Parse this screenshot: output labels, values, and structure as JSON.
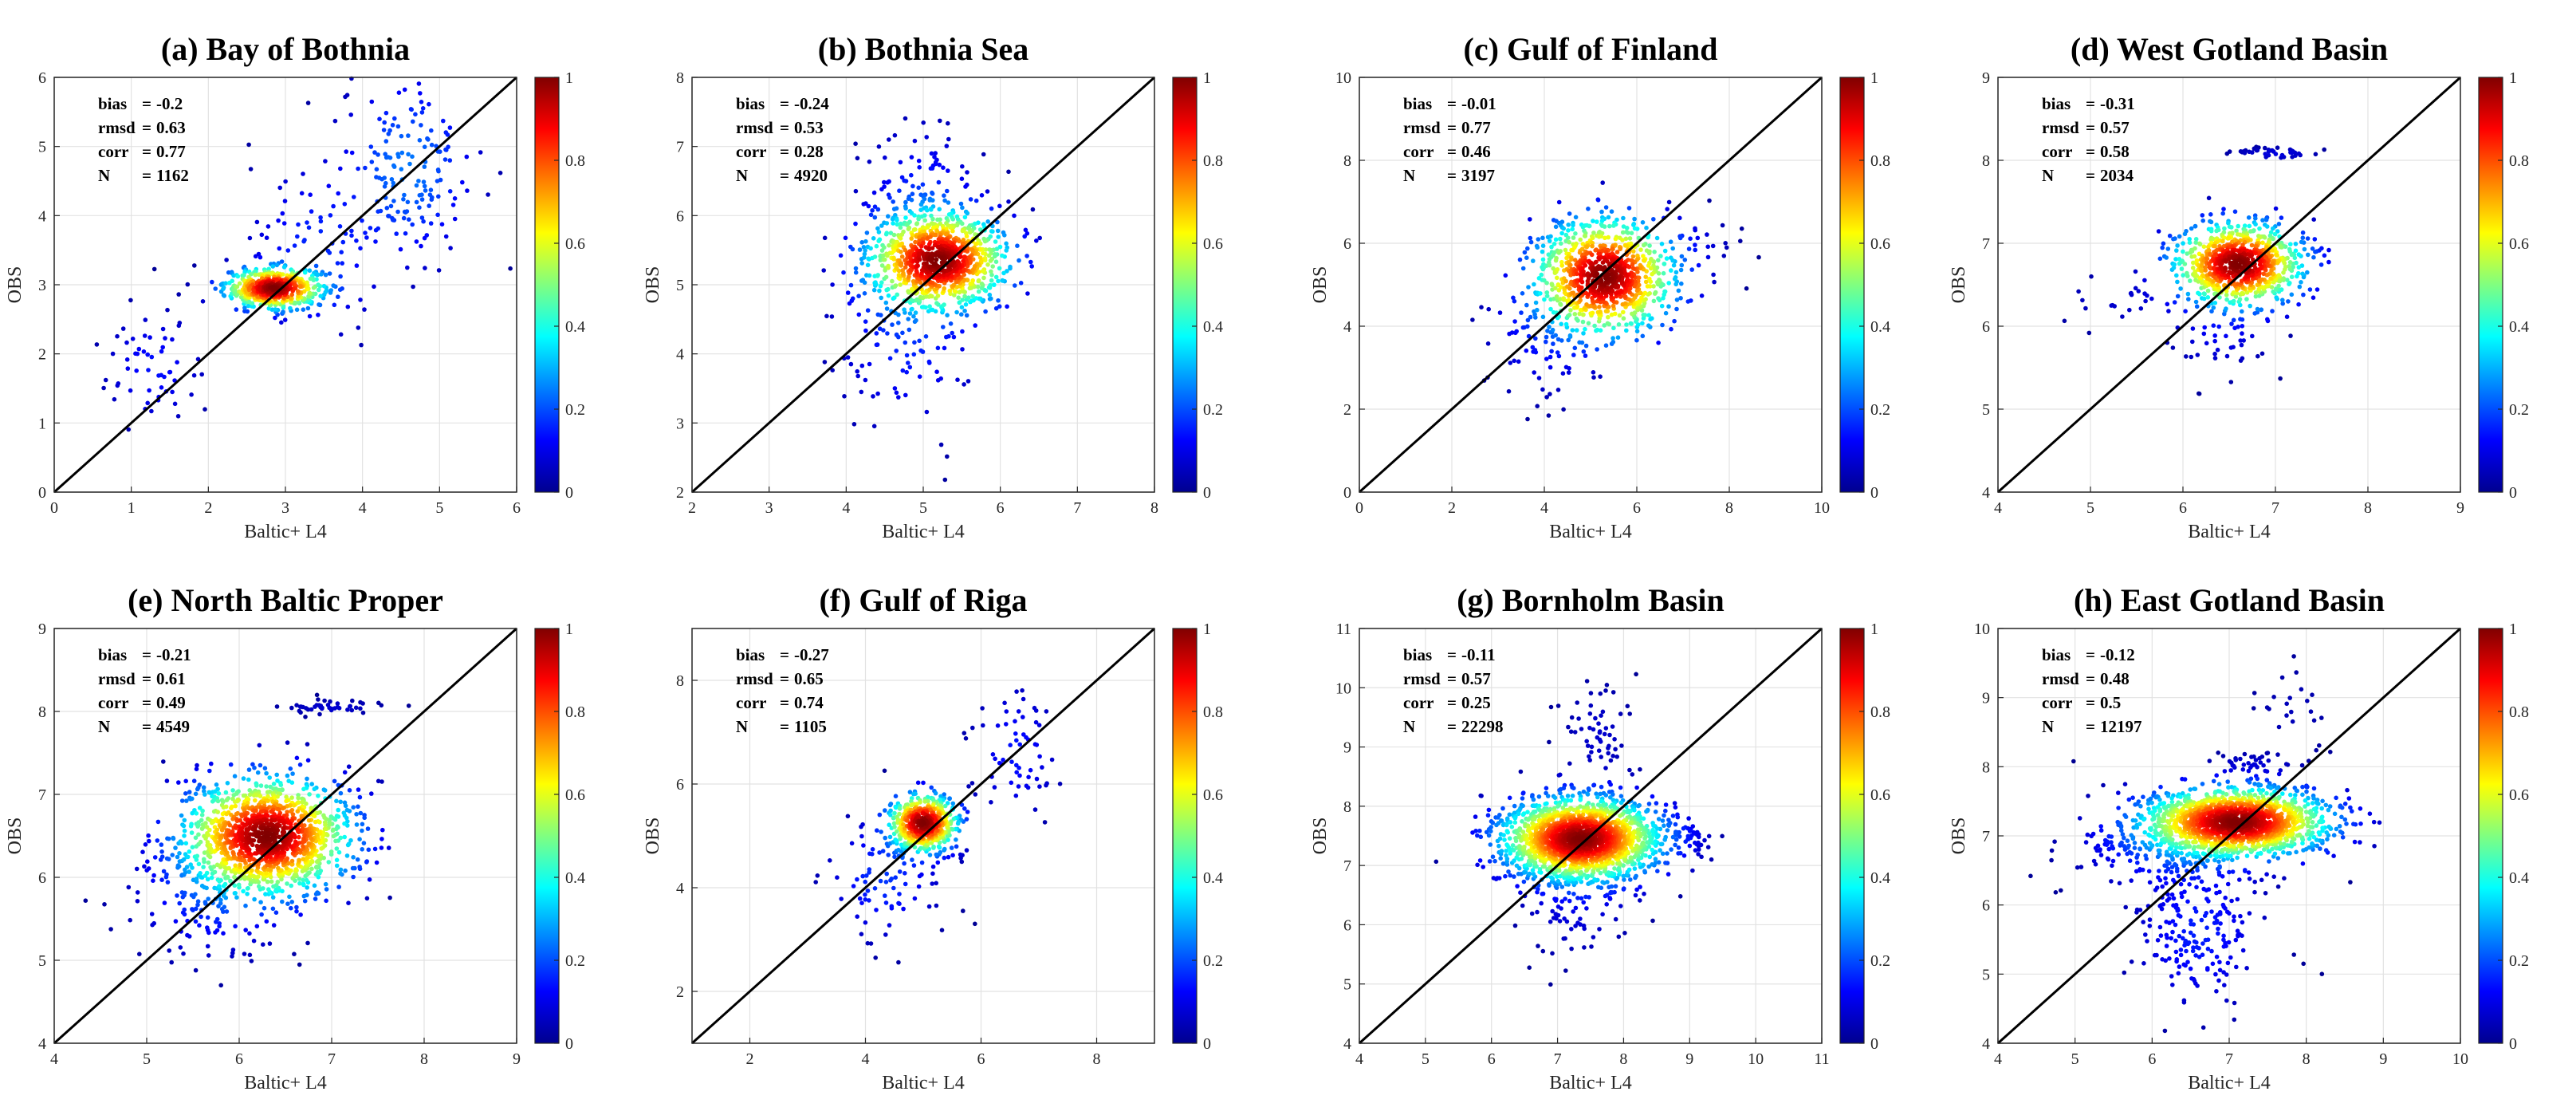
{
  "figure": {
    "colorbar_ticks": [
      "0",
      "0.2",
      "0.4",
      "0.6",
      "0.8",
      "1"
    ],
    "colormap": [
      "#00008f",
      "#0000ff",
      "#0080ff",
      "#00ffff",
      "#80ff80",
      "#ffff00",
      "#ff8000",
      "#ff0000",
      "#800000"
    ],
    "diagonal_color": "#000000"
  },
  "chart_data": [
    {
      "type": "scatter",
      "title": "(a) Bay of Bothnia",
      "xlabel": "Baltic+ L4",
      "ylabel": "OBS",
      "xlim": [
        0,
        6
      ],
      "ylim": [
        0,
        6
      ],
      "xticks": [
        0,
        1,
        2,
        3,
        4,
        5,
        6
      ],
      "yticks": [
        0,
        1,
        2,
        3,
        4,
        5,
        6
      ],
      "stats": [
        {
          "label": "bias",
          "value": "-0.2"
        },
        {
          "label": "rmsd",
          "value": "0.63"
        },
        {
          "label": "corr",
          "value": "0.77"
        },
        {
          "label": "N",
          "value": "1162"
        }
      ],
      "colorbar": {
        "range": [
          0,
          1
        ]
      },
      "grid": true,
      "clusters": [
        {
          "cx": 2.85,
          "cy": 2.95,
          "sx": 0.32,
          "sy": 0.15,
          "n": 520
        },
        {
          "cx": 4.6,
          "cy": 4.7,
          "sx": 0.45,
          "sy": 0.7,
          "n": 160
        },
        {
          "cx": 1.3,
          "cy": 1.8,
          "sx": 0.35,
          "sy": 0.45,
          "n": 60
        },
        {
          "cx": 3.4,
          "cy": 3.5,
          "sx": 0.5,
          "sy": 0.7,
          "n": 80
        }
      ]
    },
    {
      "type": "scatter",
      "title": "(b) Bothnia Sea",
      "xlabel": "Baltic+ L4",
      "ylabel": "OBS",
      "xlim": [
        2,
        8
      ],
      "ylim": [
        2,
        8
      ],
      "xticks": [
        2,
        3,
        4,
        5,
        6,
        7,
        8
      ],
      "yticks": [
        2,
        3,
        4,
        5,
        6,
        7,
        8
      ],
      "stats": [
        {
          "label": "bias",
          "value": "-0.24"
        },
        {
          "label": "rmsd",
          "value": "0.53"
        },
        {
          "label": "corr",
          "value": "0.28"
        },
        {
          "label": "N",
          "value": "4920"
        }
      ],
      "colorbar": {
        "range": [
          0,
          1
        ]
      },
      "grid": true,
      "clusters": [
        {
          "cx": 5.2,
          "cy": 5.35,
          "sx": 0.45,
          "sy": 0.35,
          "n": 900
        },
        {
          "cx": 4.8,
          "cy": 4.6,
          "sx": 0.5,
          "sy": 0.9,
          "n": 160
        },
        {
          "cx": 5.0,
          "cy": 6.2,
          "sx": 0.4,
          "sy": 0.6,
          "n": 120
        }
      ]
    },
    {
      "type": "scatter",
      "title": "(c) Gulf of Finland",
      "xlabel": "Baltic+ L4",
      "ylabel": "OBS",
      "xlim": [
        0,
        10
      ],
      "ylim": [
        0,
        10
      ],
      "xticks": [
        0,
        2,
        4,
        6,
        8,
        10
      ],
      "yticks": [
        0,
        2,
        4,
        6,
        8,
        10
      ],
      "stats": [
        {
          "label": "bias",
          "value": "-0.01"
        },
        {
          "label": "rmsd",
          "value": "0.77"
        },
        {
          "label": "corr",
          "value": "0.46"
        },
        {
          "label": "N",
          "value": "3197"
        }
      ],
      "colorbar": {
        "range": [
          0,
          1
        ]
      },
      "grid": true,
      "clusters": [
        {
          "cx": 5.3,
          "cy": 5.2,
          "sx": 0.75,
          "sy": 0.7,
          "n": 900
        },
        {
          "cx": 4.0,
          "cy": 3.8,
          "sx": 0.7,
          "sy": 0.8,
          "n": 90
        },
        {
          "cx": 7.2,
          "cy": 6.0,
          "sx": 0.5,
          "sy": 0.4,
          "n": 30
        }
      ]
    },
    {
      "type": "scatter",
      "title": "(d) West Gotland Basin",
      "xlabel": "Baltic+ L4",
      "ylabel": "OBS",
      "xlim": [
        4,
        9
      ],
      "ylim": [
        4,
        9
      ],
      "xticks": [
        4,
        5,
        6,
        7,
        8,
        9
      ],
      "yticks": [
        4,
        5,
        6,
        7,
        8,
        9
      ],
      "stats": [
        {
          "label": "bias",
          "value": "-0.31"
        },
        {
          "label": "rmsd",
          "value": "0.57"
        },
        {
          "label": "corr",
          "value": "0.58"
        },
        {
          "label": "N",
          "value": "2034"
        }
      ],
      "colorbar": {
        "range": [
          0,
          1
        ]
      },
      "grid": true,
      "clusters": [
        {
          "cx": 6.6,
          "cy": 6.75,
          "sx": 0.35,
          "sy": 0.25,
          "n": 800
        },
        {
          "cx": 7.0,
          "cy": 8.08,
          "sx": 0.25,
          "sy": 0.04,
          "n": 40
        },
        {
          "cx": 5.3,
          "cy": 6.3,
          "sx": 0.4,
          "sy": 0.2,
          "n": 25
        },
        {
          "cx": 6.4,
          "cy": 6.0,
          "sx": 0.3,
          "sy": 0.3,
          "n": 60
        }
      ]
    },
    {
      "type": "scatter",
      "title": "(e) North Baltic Proper",
      "xlabel": "Baltic+ L4",
      "ylabel": "OBS",
      "xlim": [
        4,
        9
      ],
      "ylim": [
        4,
        9
      ],
      "xticks": [
        4,
        5,
        6,
        7,
        8,
        9
      ],
      "yticks": [
        4,
        5,
        6,
        7,
        8,
        9
      ],
      "stats": [
        {
          "label": "bias",
          "value": "-0.21"
        },
        {
          "label": "rmsd",
          "value": "0.61"
        },
        {
          "label": "corr",
          "value": "0.49"
        },
        {
          "label": "N",
          "value": "4549"
        }
      ],
      "colorbar": {
        "range": [
          0,
          1
        ]
      },
      "grid": true,
      "clusters": [
        {
          "cx": 6.3,
          "cy": 6.5,
          "sx": 0.45,
          "sy": 0.35,
          "n": 1300
        },
        {
          "cx": 5.7,
          "cy": 5.8,
          "sx": 0.45,
          "sy": 0.4,
          "n": 200
        },
        {
          "cx": 7.0,
          "cy": 8.05,
          "sx": 0.3,
          "sy": 0.05,
          "n": 45
        }
      ]
    },
    {
      "type": "scatter",
      "title": "(f) Gulf of Riga",
      "xlabel": "Baltic+ L4",
      "ylabel": "OBS",
      "xlim": [
        1,
        9
      ],
      "ylim": [
        1,
        9
      ],
      "xticks": [
        2,
        4,
        6,
        8
      ],
      "yticks": [
        2,
        4,
        6,
        8
      ],
      "stats": [
        {
          "label": "bias",
          "value": "-0.27"
        },
        {
          "label": "rmsd",
          "value": "0.65"
        },
        {
          "label": "corr",
          "value": "0.74"
        },
        {
          "label": "N",
          "value": "1105"
        }
      ],
      "colorbar": {
        "range": [
          0,
          1
        ]
      },
      "grid": true,
      "clusters": [
        {
          "cx": 5.0,
          "cy": 5.25,
          "sx": 0.3,
          "sy": 0.28,
          "n": 520
        },
        {
          "cx": 6.6,
          "cy": 6.6,
          "sx": 0.4,
          "sy": 0.7,
          "n": 60
        },
        {
          "cx": 4.3,
          "cy": 4.2,
          "sx": 0.5,
          "sy": 0.6,
          "n": 90
        }
      ]
    },
    {
      "type": "scatter",
      "title": "(g) Bornholm Basin",
      "xlabel": "Baltic+ L4",
      "ylabel": "OBS",
      "xlim": [
        4,
        11
      ],
      "ylim": [
        4,
        11
      ],
      "xticks": [
        4,
        5,
        6,
        7,
        8,
        9,
        10,
        11
      ],
      "yticks": [
        4,
        5,
        6,
        7,
        8,
        9,
        10,
        11
      ],
      "stats": [
        {
          "label": "bias",
          "value": "-0.11"
        },
        {
          "label": "rmsd",
          "value": "0.57"
        },
        {
          "label": "corr",
          "value": "0.25"
        },
        {
          "label": "N",
          "value": "22298"
        }
      ],
      "colorbar": {
        "range": [
          0,
          1
        ]
      },
      "grid": true,
      "clusters": [
        {
          "cx": 7.35,
          "cy": 7.45,
          "sx": 0.6,
          "sy": 0.35,
          "n": 1800
        },
        {
          "cx": 7.3,
          "cy": 6.6,
          "sx": 0.45,
          "sy": 0.6,
          "n": 120
        },
        {
          "cx": 7.6,
          "cy": 9.2,
          "sx": 0.3,
          "sy": 0.5,
          "n": 60
        },
        {
          "cx": 9.0,
          "cy": 7.5,
          "sx": 0.15,
          "sy": 0.1,
          "n": 40
        }
      ]
    },
    {
      "type": "scatter",
      "title": "(h) East Gotland Basin",
      "xlabel": "Baltic+ L4",
      "ylabel": "OBS",
      "xlim": [
        4,
        10
      ],
      "ylim": [
        4,
        10
      ],
      "xticks": [
        4,
        5,
        6,
        7,
        8,
        9,
        10
      ],
      "yticks": [
        4,
        5,
        6,
        7,
        8,
        9,
        10
      ],
      "stats": [
        {
          "label": "bias",
          "value": "-0.12"
        },
        {
          "label": "rmsd",
          "value": "0.48"
        },
        {
          "label": "corr",
          "value": "0.5"
        },
        {
          "label": "N",
          "value": "12197"
        }
      ],
      "colorbar": {
        "range": [
          0,
          1
        ]
      },
      "grid": true,
      "clusters": [
        {
          "cx": 7.1,
          "cy": 7.2,
          "sx": 0.6,
          "sy": 0.25,
          "n": 1500
        },
        {
          "cx": 6.6,
          "cy": 5.6,
          "sx": 0.45,
          "sy": 0.6,
          "n": 200
        },
        {
          "cx": 6.2,
          "cy": 6.9,
          "sx": 0.6,
          "sy": 0.35,
          "n": 250
        },
        {
          "cx": 7.3,
          "cy": 8.05,
          "sx": 0.3,
          "sy": 0.08,
          "n": 40
        },
        {
          "cx": 7.8,
          "cy": 8.8,
          "sx": 0.3,
          "sy": 0.4,
          "n": 25
        }
      ]
    }
  ]
}
